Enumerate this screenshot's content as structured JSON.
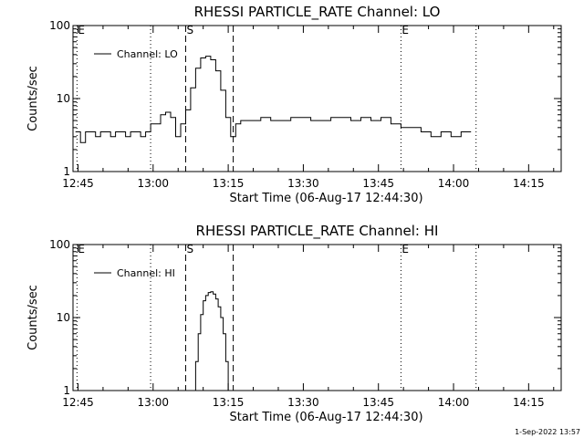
{
  "chart_data": [
    {
      "type": "line",
      "title": "RHESSI PARTICLE_RATE Channel: LO",
      "xlabel": "Start Time (06-Aug-17 12:44:30)",
      "ylabel": "Counts/sec",
      "yscale": "log",
      "xlim": [
        -0.5,
        97
      ],
      "ylim": [
        1,
        100
      ],
      "x_tick_values": [
        0.5,
        15.5,
        30.5,
        45.5,
        60.5,
        75.5,
        90.5
      ],
      "x_tick_labels": [
        "12:45",
        "13:00",
        "13:15",
        "13:30",
        "13:45",
        "14:00",
        "14:15"
      ],
      "y_tick_values": [
        1,
        10,
        100
      ],
      "y_tick_labels": [
        "1",
        "10",
        "100"
      ],
      "legend": "top-left",
      "markers": [
        {
          "x": 0.3,
          "style": "dotted",
          "label": "E"
        },
        {
          "x": 15.0,
          "style": "dotted",
          "label": ""
        },
        {
          "x": 22.0,
          "style": "dashed",
          "label": "S"
        },
        {
          "x": 31.5,
          "style": "dashed",
          "label": ""
        },
        {
          "x": 65.0,
          "style": "dotted",
          "label": "E"
        },
        {
          "x": 80.0,
          "style": "dotted",
          "label": ""
        }
      ],
      "series": [
        {
          "name": "Channel: LO",
          "x": [
            0,
            1,
            2,
            3,
            4,
            5,
            6,
            7,
            8,
            9,
            10,
            11,
            12,
            13,
            14,
            15,
            16,
            17,
            18,
            19,
            20,
            21,
            22,
            23,
            24,
            25,
            26,
            27,
            28,
            29,
            30,
            31,
            32,
            33,
            35,
            37,
            39,
            41,
            43,
            45,
            47,
            49,
            51,
            53,
            55,
            57,
            59,
            61,
            63,
            65,
            67,
            69,
            71,
            73,
            75,
            77,
            79
          ],
          "y": [
            3.5,
            2.5,
            3.5,
            3.5,
            3.0,
            3.5,
            3.5,
            3.0,
            3.5,
            3.5,
            3.0,
            3.5,
            3.5,
            3.0,
            3.5,
            4.5,
            4.5,
            6.0,
            6.5,
            5.5,
            3.0,
            4.5,
            7.0,
            14.0,
            26.0,
            36.0,
            38.0,
            34.0,
            24.0,
            13.0,
            5.5,
            3.0,
            4.5,
            5.0,
            5.0,
            5.5,
            5.0,
            5.0,
            5.5,
            5.5,
            5.0,
            5.0,
            5.5,
            5.5,
            5.0,
            5.5,
            5.0,
            5.5,
            4.5,
            4.0,
            4.0,
            3.5,
            3.0,
            3.5,
            3.0,
            3.5,
            3.5
          ]
        }
      ]
    },
    {
      "type": "line",
      "title": "RHESSI PARTICLE_RATE Channel: HI",
      "xlabel": "Start Time (06-Aug-17 12:44:30)",
      "ylabel": "Counts/sec",
      "yscale": "log",
      "xlim": [
        -0.5,
        97
      ],
      "ylim": [
        1,
        100
      ],
      "x_tick_values": [
        0.5,
        15.5,
        30.5,
        45.5,
        60.5,
        75.5,
        90.5
      ],
      "x_tick_labels": [
        "12:45",
        "13:00",
        "13:15",
        "13:30",
        "13:45",
        "14:00",
        "14:15"
      ],
      "y_tick_values": [
        1,
        10,
        100
      ],
      "y_tick_labels": [
        "1",
        "10",
        "100"
      ],
      "legend": "top-left",
      "markers": [
        {
          "x": 0.3,
          "style": "dotted",
          "label": "E"
        },
        {
          "x": 15.0,
          "style": "dotted",
          "label": ""
        },
        {
          "x": 22.0,
          "style": "dashed",
          "label": "S"
        },
        {
          "x": 31.5,
          "style": "dashed",
          "label": ""
        },
        {
          "x": 65.0,
          "style": "dotted",
          "label": "E"
        },
        {
          "x": 80.0,
          "style": "dotted",
          "label": ""
        }
      ],
      "series": [
        {
          "name": "Channel: HI",
          "x": [
            23.5,
            24,
            24.5,
            25,
            25.5,
            26,
            26.5,
            27,
            27.5,
            28,
            28.5,
            29,
            29.5,
            30,
            30.5
          ],
          "y": [
            1.0,
            2.5,
            6.0,
            11.0,
            17.0,
            20.0,
            22.0,
            22.5,
            21.0,
            18.0,
            14.0,
            10.0,
            6.0,
            2.5,
            1.0
          ]
        }
      ]
    }
  ],
  "footer": {
    "timestamp": "1-Sep-2022 13:57"
  }
}
